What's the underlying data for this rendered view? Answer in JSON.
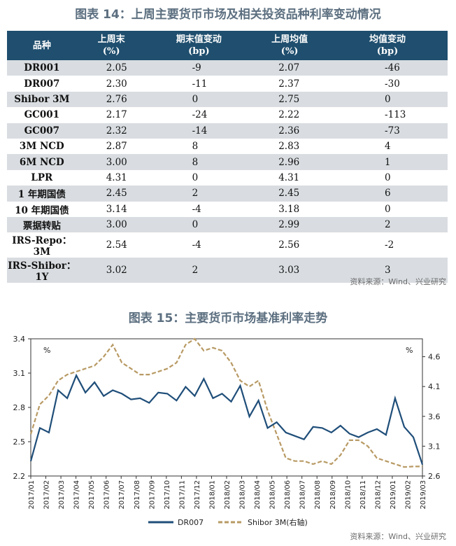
{
  "table_title": "图表 14：上周主要货币市场及相关投资品种利率变动情况",
  "table": {
    "headers": [
      {
        "line1": "品种",
        "line2": ""
      },
      {
        "line1": "上周末",
        "line2": "(%)"
      },
      {
        "line1": "期末值变动",
        "line2": "(bp)"
      },
      {
        "line1": "上周均值",
        "line2": "(%)"
      },
      {
        "line1": "均值变动",
        "line2": "(bp)"
      }
    ],
    "rows": [
      [
        "DR001",
        "2.05",
        "-9",
        "2.07",
        "-46"
      ],
      [
        "DR007",
        "2.30",
        "-11",
        "2.37",
        "-30"
      ],
      [
        "Shibor 3M",
        "2.76",
        "0",
        "2.75",
        "0"
      ],
      [
        "GC001",
        "2.17",
        "-24",
        "2.22",
        "-113"
      ],
      [
        "GC007",
        "2.32",
        "-14",
        "2.36",
        "-73"
      ],
      [
        "3M NCD",
        "2.87",
        "8",
        "2.83",
        "4"
      ],
      [
        "6M NCD",
        "3.00",
        "8",
        "2.96",
        "1"
      ],
      [
        "LPR",
        "4.31",
        "0",
        "4.31",
        "0"
      ],
      [
        "1 年期国债",
        "2.45",
        "2",
        "2.45",
        "6"
      ],
      [
        "10 年期国债",
        "3.14",
        "-4",
        "3.18",
        "0"
      ],
      [
        "票据转贴",
        "3.00",
        "0",
        "2.99",
        "2"
      ],
      [
        "IRS-Repo：3M",
        "2.54",
        "-4",
        "2.56",
        "-2"
      ],
      [
        "IRS-Shibor：1Y",
        "3.02",
        "2",
        "3.03",
        "3"
      ]
    ]
  },
  "source1": "资料来源：Wind、兴业研究",
  "chart_title": "图表 15：主要货币市场基准利率走势",
  "source2": "资料来源：Wind、兴业研究",
  "colors": {
    "header_bg": "#1f4e6e",
    "shade": "#d9dde1",
    "dr007": "#1f4e79",
    "shibor": "#b89a64",
    "title": "#5c6f80"
  },
  "chart_data": {
    "type": "line",
    "left_unit": "%",
    "right_unit": "%",
    "y_left_ticks": [
      "2.2",
      "2.5",
      "2.8",
      "3.1",
      "3.4"
    ],
    "y_left_range": [
      2.2,
      3.4
    ],
    "y_right_ticks": [
      "2.6",
      "3.1",
      "3.6",
      "4.1",
      "4.6"
    ],
    "y_right_range": [
      2.6,
      4.9
    ],
    "x_labels": [
      "2017/01",
      "2017/02",
      "2017/03",
      "2017/04",
      "2017/05",
      "2017/06",
      "2017/07",
      "2017/08",
      "2017/09",
      "2017/10",
      "2017/11",
      "2017/12",
      "2018/01",
      "2018/02",
      "2018/03",
      "2018/04",
      "2018/05",
      "2018/06",
      "2018/07",
      "2018/08",
      "2018/09",
      "2018/10",
      "2018/11",
      "2018/12",
      "2019/01",
      "2019/02",
      "2019/03"
    ],
    "legend_position": "bottom",
    "series": [
      {
        "name": "DR007",
        "axis": "left",
        "values": [
          2.33,
          2.62,
          2.58,
          2.95,
          2.88,
          3.08,
          2.93,
          3.02,
          2.9,
          2.95,
          2.92,
          2.87,
          2.88,
          2.84,
          2.93,
          2.92,
          2.86,
          2.98,
          2.9,
          3.05,
          2.88,
          2.92,
          2.85,
          2.99,
          2.72,
          2.86,
          2.62,
          2.67,
          2.58,
          2.55,
          2.52,
          2.63,
          2.62,
          2.58,
          2.64,
          2.57,
          2.54,
          2.58,
          2.61,
          2.56,
          2.88,
          2.63,
          2.54,
          2.3
        ]
      },
      {
        "name": "Shibor 3M(右轴)",
        "axis": "right",
        "values": [
          3.3,
          3.8,
          3.95,
          4.2,
          4.3,
          4.35,
          4.4,
          4.45,
          4.6,
          4.8,
          4.5,
          4.4,
          4.3,
          4.3,
          4.35,
          4.4,
          4.5,
          4.8,
          4.9,
          4.7,
          4.75,
          4.7,
          4.5,
          4.2,
          4.1,
          4.2,
          3.7,
          3.3,
          2.9,
          2.85,
          2.85,
          2.8,
          2.85,
          2.8,
          2.95,
          3.2,
          3.2,
          3.1,
          2.9,
          2.85,
          2.8,
          2.75,
          2.76,
          2.76
        ]
      }
    ]
  }
}
